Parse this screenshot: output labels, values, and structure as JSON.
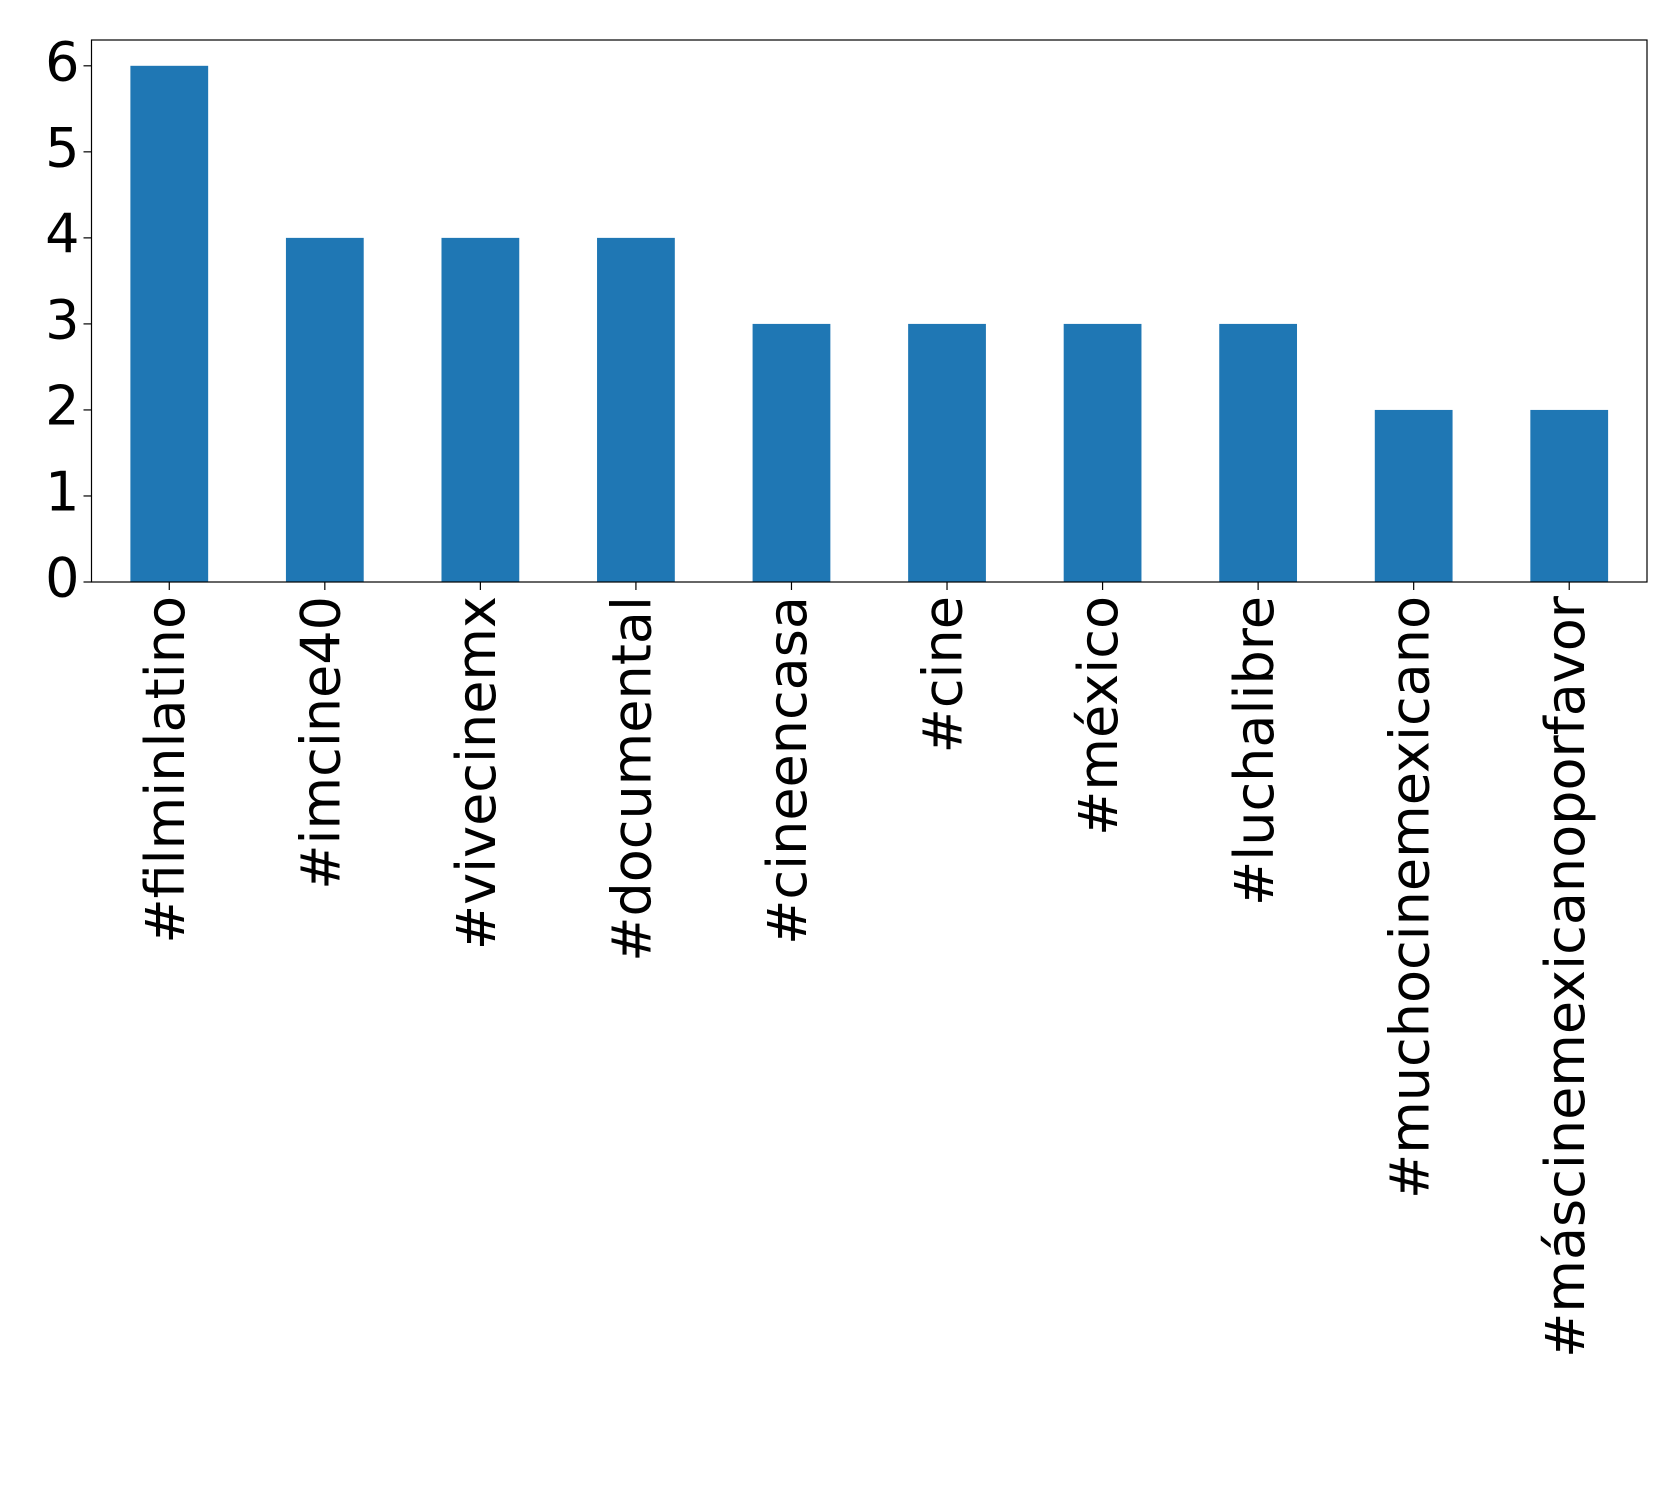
{
  "chart_data": {
    "type": "bar",
    "categories": [
      "#filminlatino",
      "#imcine40",
      "#vivecinemx",
      "#documental",
      "#cineencasa",
      "#cine",
      "#méxico",
      "#luchalibre",
      "#muchocinemexicano",
      "#máscinemexicanoporfavor"
    ],
    "values": [
      6,
      4,
      4,
      4,
      3,
      3,
      3,
      3,
      2,
      2
    ],
    "color": "#1f77b4",
    "ylim": [
      0,
      6.3
    ],
    "yticks": [
      0,
      1,
      2,
      3,
      4,
      5,
      6
    ]
  }
}
